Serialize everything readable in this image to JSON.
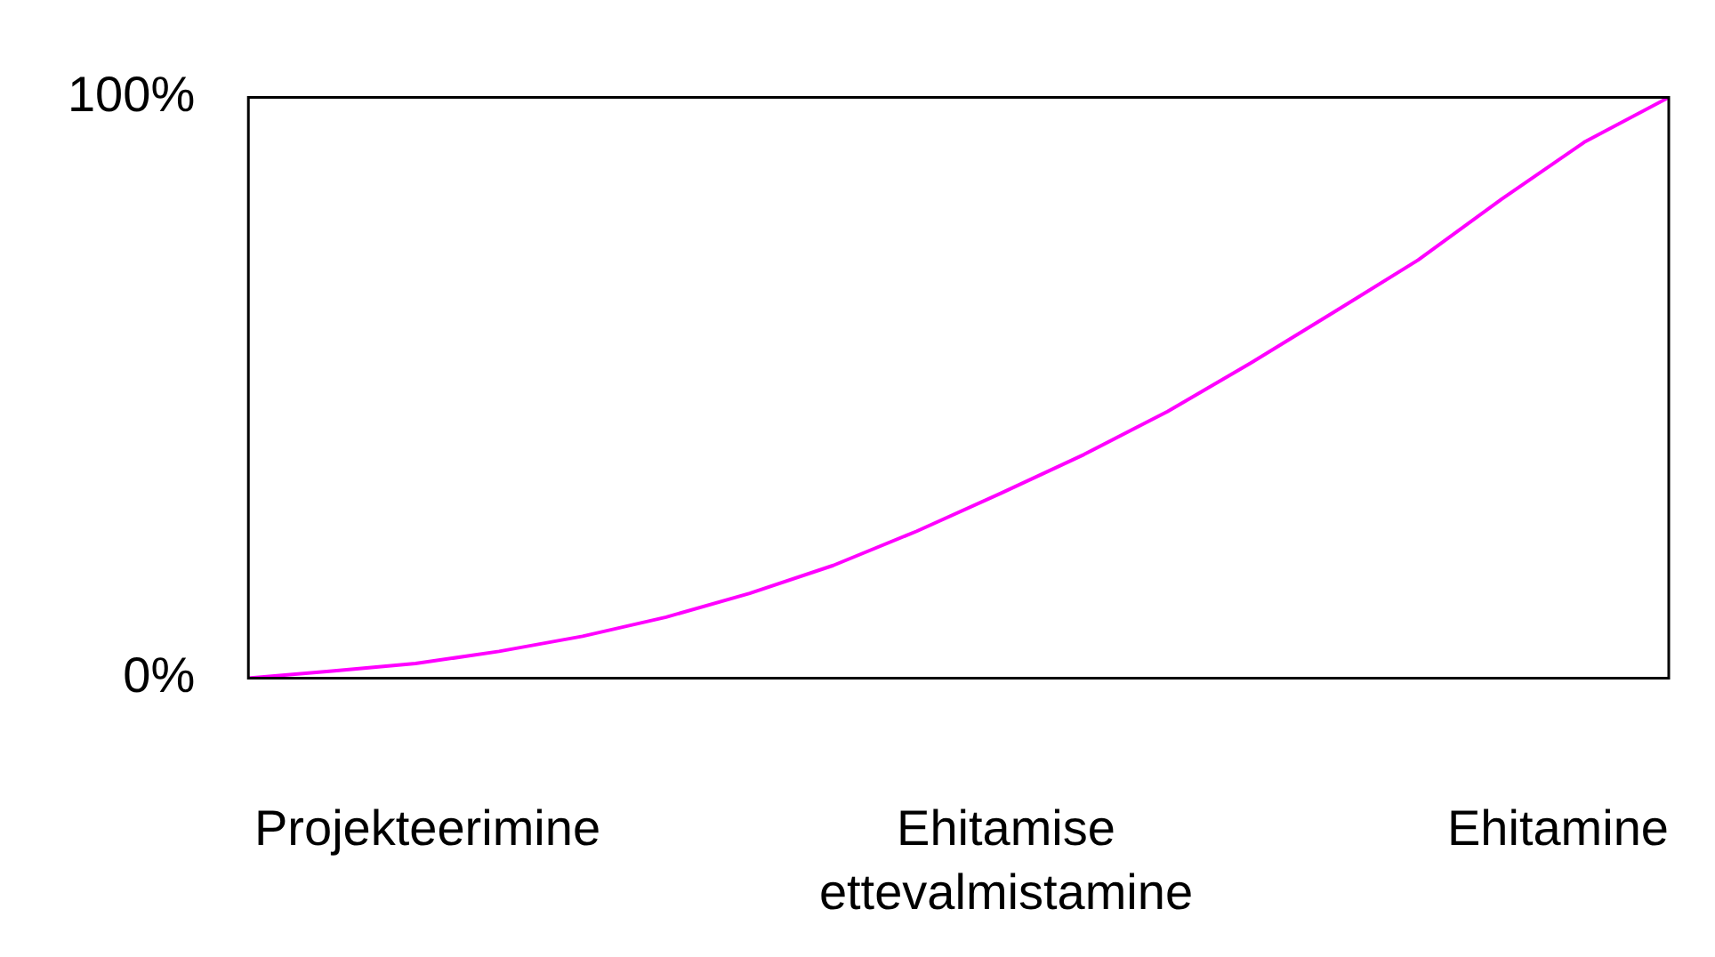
{
  "chart_data": {
    "type": "line",
    "categories": [
      null,
      null,
      null,
      null,
      null,
      null,
      null,
      null,
      null,
      null,
      null,
      null,
      null,
      null,
      null,
      null,
      null,
      null
    ],
    "series": [
      {
        "color": "#ff00ff",
        "values": [
          0,
          1.2,
          2.5,
          4.6,
          7.2,
          10.5,
          14.6,
          19.4,
          25.3,
          31.8,
          38.5,
          45.9,
          54.3,
          63.1,
          72.0,
          82.5,
          92.4,
          100
        ]
      }
    ],
    "ylim": [
      0,
      100
    ],
    "yticks": [
      {
        "value": 0,
        "label": "0%"
      },
      {
        "value": 100,
        "label": "100%"
      }
    ],
    "tick_labels": "y",
    "marker": "none",
    "line_style": "solid",
    "annotations": [
      "Projekteerimine",
      "Ehitamise ettevalmistamine",
      "Ehitamine"
    ]
  }
}
